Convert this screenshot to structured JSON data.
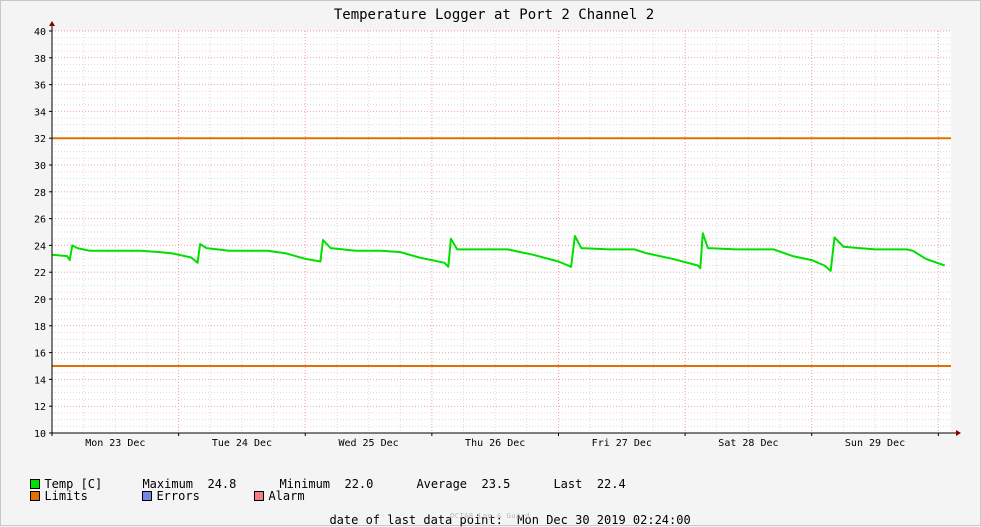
{
  "chart_data": {
    "type": "line",
    "title": "Temperature Logger at Port 2 Channel 2",
    "x_tick_labels": [
      "Mon 23 Dec",
      "Tue 24 Dec",
      "Wed 25 Dec",
      "Thu 26 Dec",
      "Fri 27 Dec",
      "Sat 28 Dec",
      "Sun 29 Dec"
    ],
    "xlim": [
      0,
      7.1
    ],
    "y_ticks": [
      10,
      12,
      14,
      16,
      18,
      20,
      22,
      24,
      26,
      28,
      30,
      32,
      34,
      36,
      38,
      40
    ],
    "ylim": [
      10,
      40
    ],
    "grid": true,
    "limits": {
      "upper": 32,
      "lower": 15,
      "color": "#e07000"
    },
    "series": [
      {
        "name": "Temp [C]",
        "color": "#00e000",
        "points": [
          [
            0.0,
            23.3
          ],
          [
            0.12,
            23.2
          ],
          [
            0.14,
            22.9
          ],
          [
            0.16,
            24.0
          ],
          [
            0.2,
            23.8
          ],
          [
            0.3,
            23.6
          ],
          [
            0.5,
            23.6
          ],
          [
            0.7,
            23.6
          ],
          [
            0.85,
            23.5
          ],
          [
            0.95,
            23.4
          ],
          [
            1.1,
            23.1
          ],
          [
            1.15,
            22.7
          ],
          [
            1.17,
            24.1
          ],
          [
            1.22,
            23.8
          ],
          [
            1.4,
            23.6
          ],
          [
            1.7,
            23.6
          ],
          [
            1.85,
            23.4
          ],
          [
            2.0,
            23.0
          ],
          [
            2.12,
            22.8
          ],
          [
            2.14,
            24.4
          ],
          [
            2.2,
            23.8
          ],
          [
            2.4,
            23.6
          ],
          [
            2.6,
            23.6
          ],
          [
            2.75,
            23.5
          ],
          [
            2.9,
            23.1
          ],
          [
            3.1,
            22.7
          ],
          [
            3.13,
            22.4
          ],
          [
            3.15,
            24.5
          ],
          [
            3.2,
            23.7
          ],
          [
            3.4,
            23.7
          ],
          [
            3.6,
            23.7
          ],
          [
            3.7,
            23.5
          ],
          [
            3.8,
            23.3
          ],
          [
            4.0,
            22.8
          ],
          [
            4.1,
            22.4
          ],
          [
            4.13,
            24.7
          ],
          [
            4.18,
            23.8
          ],
          [
            4.4,
            23.7
          ],
          [
            4.6,
            23.7
          ],
          [
            4.7,
            23.4
          ],
          [
            4.9,
            23.0
          ],
          [
            5.1,
            22.5
          ],
          [
            5.12,
            22.3
          ],
          [
            5.14,
            24.9
          ],
          [
            5.18,
            23.8
          ],
          [
            5.4,
            23.7
          ],
          [
            5.7,
            23.7
          ],
          [
            5.85,
            23.2
          ],
          [
            6.0,
            22.9
          ],
          [
            6.1,
            22.5
          ],
          [
            6.15,
            22.1
          ],
          [
            6.18,
            24.6
          ],
          [
            6.25,
            23.9
          ],
          [
            6.5,
            23.7
          ],
          [
            6.75,
            23.7
          ],
          [
            6.8,
            23.6
          ],
          [
            6.9,
            23.0
          ],
          [
            7.05,
            22.5
          ]
        ]
      }
    ],
    "legend": {
      "temp": "Temp [C]",
      "limits": "Limits",
      "errors": "Errors",
      "alarm": "Alarm",
      "max_label": "Maximum",
      "max_value": "24.8",
      "min_label": "Minimum",
      "min_value": "22.0",
      "avg_label": "Average",
      "avg_value": "23.5",
      "last_label": "Last",
      "last_value": "22.4",
      "colors": {
        "temp": "#00e000",
        "limits": "#e07000",
        "errors": "#7088e8",
        "alarm": "#f08080"
      }
    },
    "footer": {
      "label": "date of last data point:",
      "value": "Mon Dec 30 2019 02:24:00",
      "brand": "OCTA8 Log & Guard"
    }
  }
}
